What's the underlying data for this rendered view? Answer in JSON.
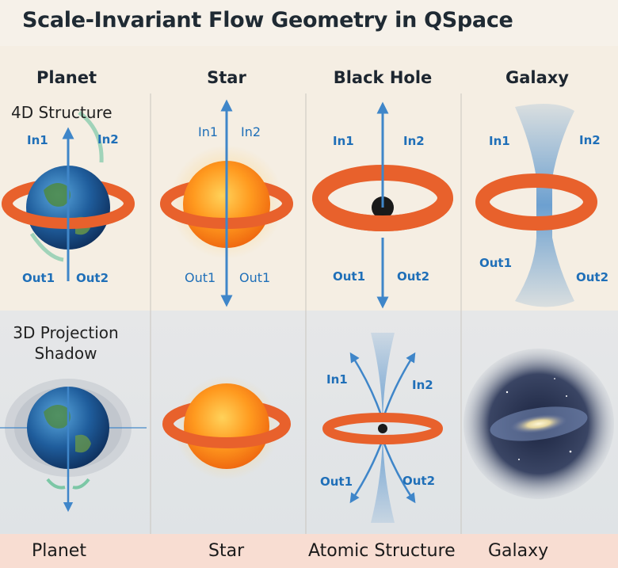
{
  "title": "Scale-Invariant Flow Geometry in QSpace",
  "columns": [
    "Planet",
    "Star",
    "Black Hole",
    "Galaxy"
  ],
  "row_labels": {
    "top": "4D Structure",
    "bottom_line1": "3D Projection",
    "bottom_line2": "Shadow"
  },
  "flow_labels": {
    "planet_top": {
      "in1": "In1",
      "in2": "In2",
      "out1": "Out1",
      "out2": "Out2"
    },
    "star_top": {
      "in1": "In1",
      "in2": "In2",
      "out1": "Out1",
      "out2": "Out1"
    },
    "blackhole_top": {
      "in1": "In1",
      "in2": "In2",
      "out1": "Out1",
      "out2": "Out2"
    },
    "galaxy_top": {
      "in1": "In1",
      "in2": "In2",
      "out1": "Out1",
      "out2": "Out2"
    },
    "atomic_bottom": {
      "in1": "In1",
      "in2": "In2",
      "out1": "Out1",
      "out2": "Out2"
    }
  },
  "footer": [
    "Planet",
    "Star",
    "Atomic Structure",
    "Galaxy"
  ],
  "colors": {
    "ring": "#e8612c",
    "arrow": "#3f86c9",
    "label_blue": "#1f6fb8",
    "sun": "#ff9a1f"
  }
}
